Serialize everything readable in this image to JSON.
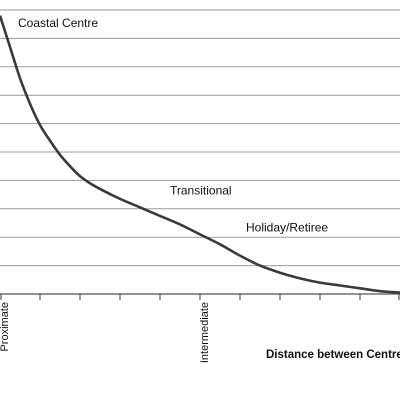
{
  "chart_data": {
    "type": "line",
    "title": "",
    "xlabel": "Distance between Centre",
    "ylabel": "",
    "grid": true,
    "legend": "none",
    "x_tick_labels": [
      {
        "x": 0,
        "label": "Proximate"
      },
      {
        "x": 10,
        "label": "Intermediate"
      }
    ],
    "xlim": [
      0,
      20
    ],
    "ylim": [
      0,
      10
    ],
    "x_ticks": [
      0,
      2,
      4,
      6,
      8,
      10,
      12,
      14,
      16,
      18,
      20
    ],
    "y_gridlines": [
      0,
      1,
      2,
      3,
      4,
      5,
      6,
      7,
      8,
      9,
      10
    ],
    "series": [
      {
        "color": "#3a3a3a",
        "x": [
          0,
          0.5,
          1,
          1.5,
          2,
          2.5,
          3,
          3.5,
          4,
          4.5,
          5,
          6,
          7,
          8,
          9,
          10,
          11,
          12,
          13,
          14,
          15,
          16,
          17,
          18,
          19,
          20
        ],
        "y": [
          9.8,
          8.7,
          7.6,
          6.7,
          5.95,
          5.4,
          4.9,
          4.5,
          4.15,
          3.9,
          3.7,
          3.35,
          3.05,
          2.75,
          2.45,
          2.1,
          1.75,
          1.35,
          1.0,
          0.75,
          0.55,
          0.4,
          0.3,
          0.2,
          0.1,
          0.05
        ]
      }
    ],
    "annotations": [
      {
        "text": "Coastal Centre",
        "x": 0.9,
        "y": 9.4
      },
      {
        "text": "Transitional",
        "x": 8.5,
        "y": 3.5
      },
      {
        "text": "Holiday/Retiree",
        "x": 12.3,
        "y": 2.2
      }
    ],
    "colors": {
      "line": "#3a3a3a",
      "grid": "#9a9a9a",
      "axis": "#555555"
    }
  }
}
